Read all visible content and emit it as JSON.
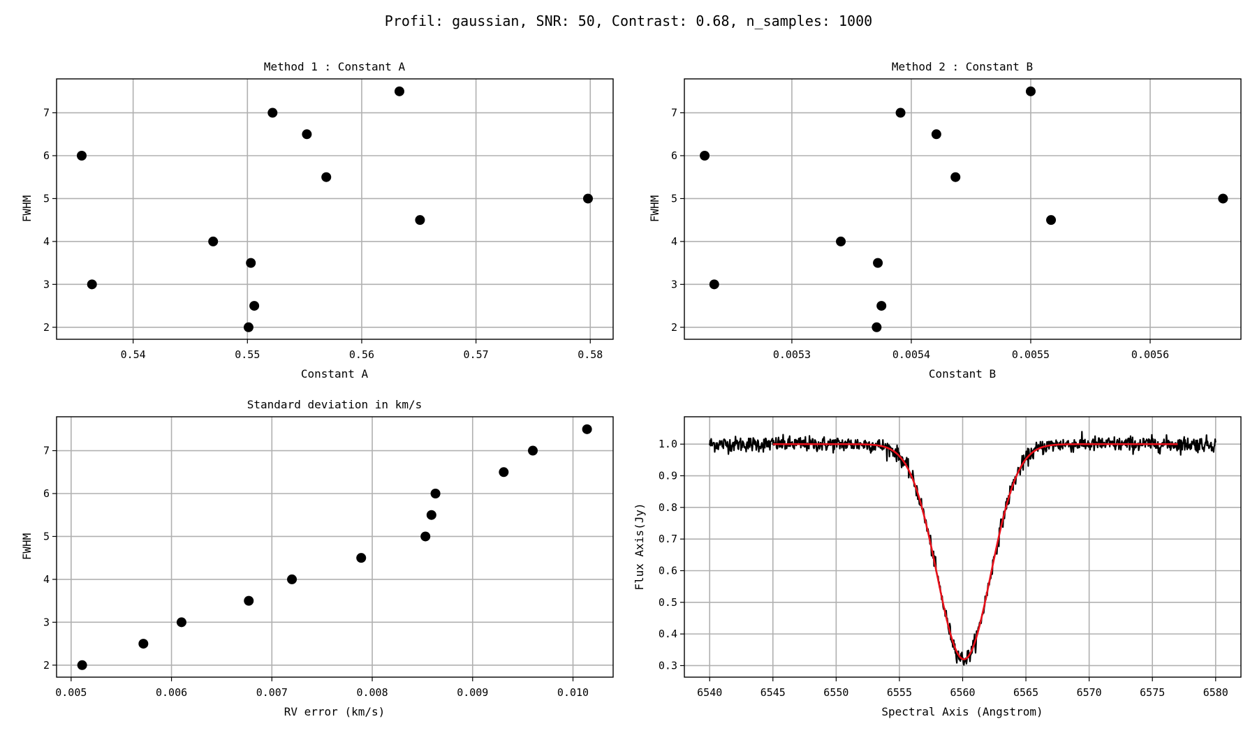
{
  "suptitle": "Profil: gaussian, SNR: 50, Contrast: 0.68, n_samples: 1000",
  "colors": {
    "grid": "#b0b0b0",
    "marker": "#000000",
    "observed_line": "#000000",
    "fit_line": "#e8101a",
    "axes": "#000000"
  },
  "chart_data": [
    {
      "type": "scatter",
      "title": "Method 1 : Constant A",
      "xlabel": "Constant A",
      "ylabel": "FWHM",
      "xlim": [
        0.5333,
        0.582
      ],
      "ylim": [
        1.72,
        7.79
      ],
      "xticks": [
        0.54,
        0.55,
        0.56,
        0.57,
        0.58
      ],
      "xtick_labels": [
        "0.54",
        "0.55",
        "0.56",
        "0.57",
        "0.58"
      ],
      "yticks": [
        2,
        3,
        4,
        5,
        6,
        7
      ],
      "ytick_labels": [
        "2",
        "3",
        "4",
        "5",
        "6",
        "7"
      ],
      "grid": true,
      "series": [
        {
          "x": [
            0.5501,
            0.5506,
            0.5364,
            0.5503,
            0.547,
            0.5651,
            0.5798,
            0.5569,
            0.5355,
            0.5552,
            0.5522,
            0.5633
          ],
          "y": [
            2.0,
            2.5,
            3.0,
            3.5,
            4.0,
            4.5,
            5.0,
            5.5,
            6.0,
            6.5,
            7.0,
            7.5
          ]
        }
      ]
    },
    {
      "type": "scatter",
      "title": "Method 2 : Constant B",
      "xlabel": "Constant B",
      "ylabel": "FWHM",
      "xlim": [
        0.00521,
        0.005676
      ],
      "ylim": [
        1.72,
        7.79
      ],
      "xticks": [
        0.0053,
        0.0054,
        0.0055,
        0.0056
      ],
      "xtick_labels": [
        "0.0053",
        "0.0054",
        "0.0055",
        "0.0056"
      ],
      "yticks": [
        2,
        3,
        4,
        5,
        6,
        7
      ],
      "ytick_labels": [
        "2",
        "3",
        "4",
        "5",
        "6",
        "7"
      ],
      "grid": true,
      "series": [
        {
          "x": [
            0.005371,
            0.005375,
            0.005235,
            0.005372,
            0.005341,
            0.005517,
            0.005661,
            0.005437,
            0.005227,
            0.005421,
            0.005391,
            0.0055
          ],
          "y": [
            2.0,
            2.5,
            3.0,
            3.5,
            4.0,
            4.5,
            5.0,
            5.5,
            6.0,
            6.5,
            7.0,
            7.5
          ]
        }
      ]
    },
    {
      "type": "scatter",
      "title": "Standard deviation in km/s",
      "xlabel": "RV error (km/s)",
      "ylabel": "FWHM",
      "xlim": [
        0.004855,
        0.0104
      ],
      "ylim": [
        1.72,
        7.79
      ],
      "xticks": [
        0.005,
        0.006,
        0.007,
        0.008,
        0.009,
        0.01
      ],
      "xtick_labels": [
        "0.005",
        "0.006",
        "0.007",
        "0.008",
        "0.009",
        "0.010"
      ],
      "yticks": [
        2,
        3,
        4,
        5,
        6,
        7
      ],
      "ytick_labels": [
        "2",
        "3",
        "4",
        "5",
        "6",
        "7"
      ],
      "grid": true,
      "series": [
        {
          "x": [
            0.00511,
            0.00572,
            0.0061,
            0.00677,
            0.0072,
            0.00789,
            0.00853,
            0.00859,
            0.00863,
            0.00931,
            0.0096,
            0.01014
          ],
          "y": [
            2.0,
            2.5,
            3.0,
            3.5,
            4.0,
            4.5,
            5.0,
            5.5,
            6.0,
            6.5,
            7.0,
            7.5
          ]
        }
      ]
    },
    {
      "type": "line",
      "title": "",
      "xlabel": "Spectral Axis (Angstrom)",
      "ylabel": "Flux Axis(Jy)",
      "xlim": [
        6538.0,
        6582.0
      ],
      "ylim": [
        0.2635,
        1.0865
      ],
      "xticks": [
        6540,
        6545,
        6550,
        6555,
        6560,
        6565,
        6570,
        6575,
        6580
      ],
      "xtick_labels": [
        "6540",
        "6545",
        "6550",
        "6555",
        "6560",
        "6565",
        "6570",
        "6575",
        "6580"
      ],
      "yticks": [
        0.3,
        0.4,
        0.5,
        0.6,
        0.7,
        0.8,
        0.9,
        1.0
      ],
      "ytick_labels": [
        "0.3",
        "0.4",
        "0.5",
        "0.6",
        "0.7",
        "0.8",
        "0.9",
        "1.0"
      ],
      "grid": true,
      "series": [
        {
          "kind": "noisy",
          "x_start": 6540,
          "x_end": 6580,
          "n_samples": 1000,
          "continuum": 1.0,
          "contrast": 0.68,
          "center": 6560.1,
          "fwhm": 5.0,
          "snr": 50
        },
        {
          "kind": "fit",
          "x_start": 6545,
          "x_end": 6577,
          "continuum": 1.0,
          "contrast": 0.68,
          "center": 6560.1,
          "fwhm": 5.0
        }
      ]
    }
  ]
}
